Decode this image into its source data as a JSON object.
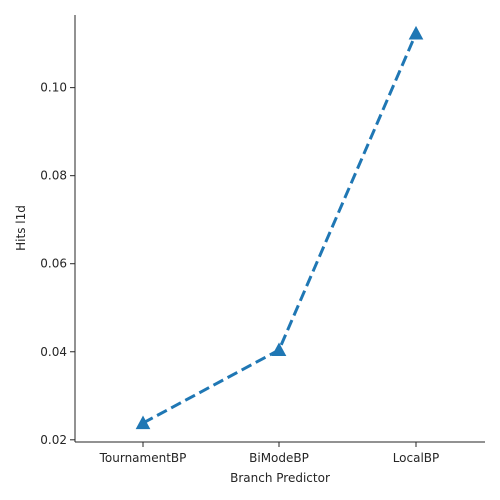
{
  "chart_data": {
    "type": "line",
    "categories": [
      "TournamentBP",
      "BiModeBP",
      "LocalBP"
    ],
    "values": [
      0.0238,
      0.0404,
      0.1123
    ],
    "xlabel": "Branch Predictor",
    "ylabel": "Hits l1d",
    "ylim": [
      0.0195,
      0.1165
    ],
    "yticks": [
      0.02,
      0.04,
      0.06,
      0.08,
      0.1
    ],
    "ytick_labels": [
      "0.02",
      "0.04",
      "0.06",
      "0.08",
      "0.10"
    ],
    "line_style": "dashed",
    "marker": "triangle",
    "color": "#1f77b4",
    "grid": false
  }
}
